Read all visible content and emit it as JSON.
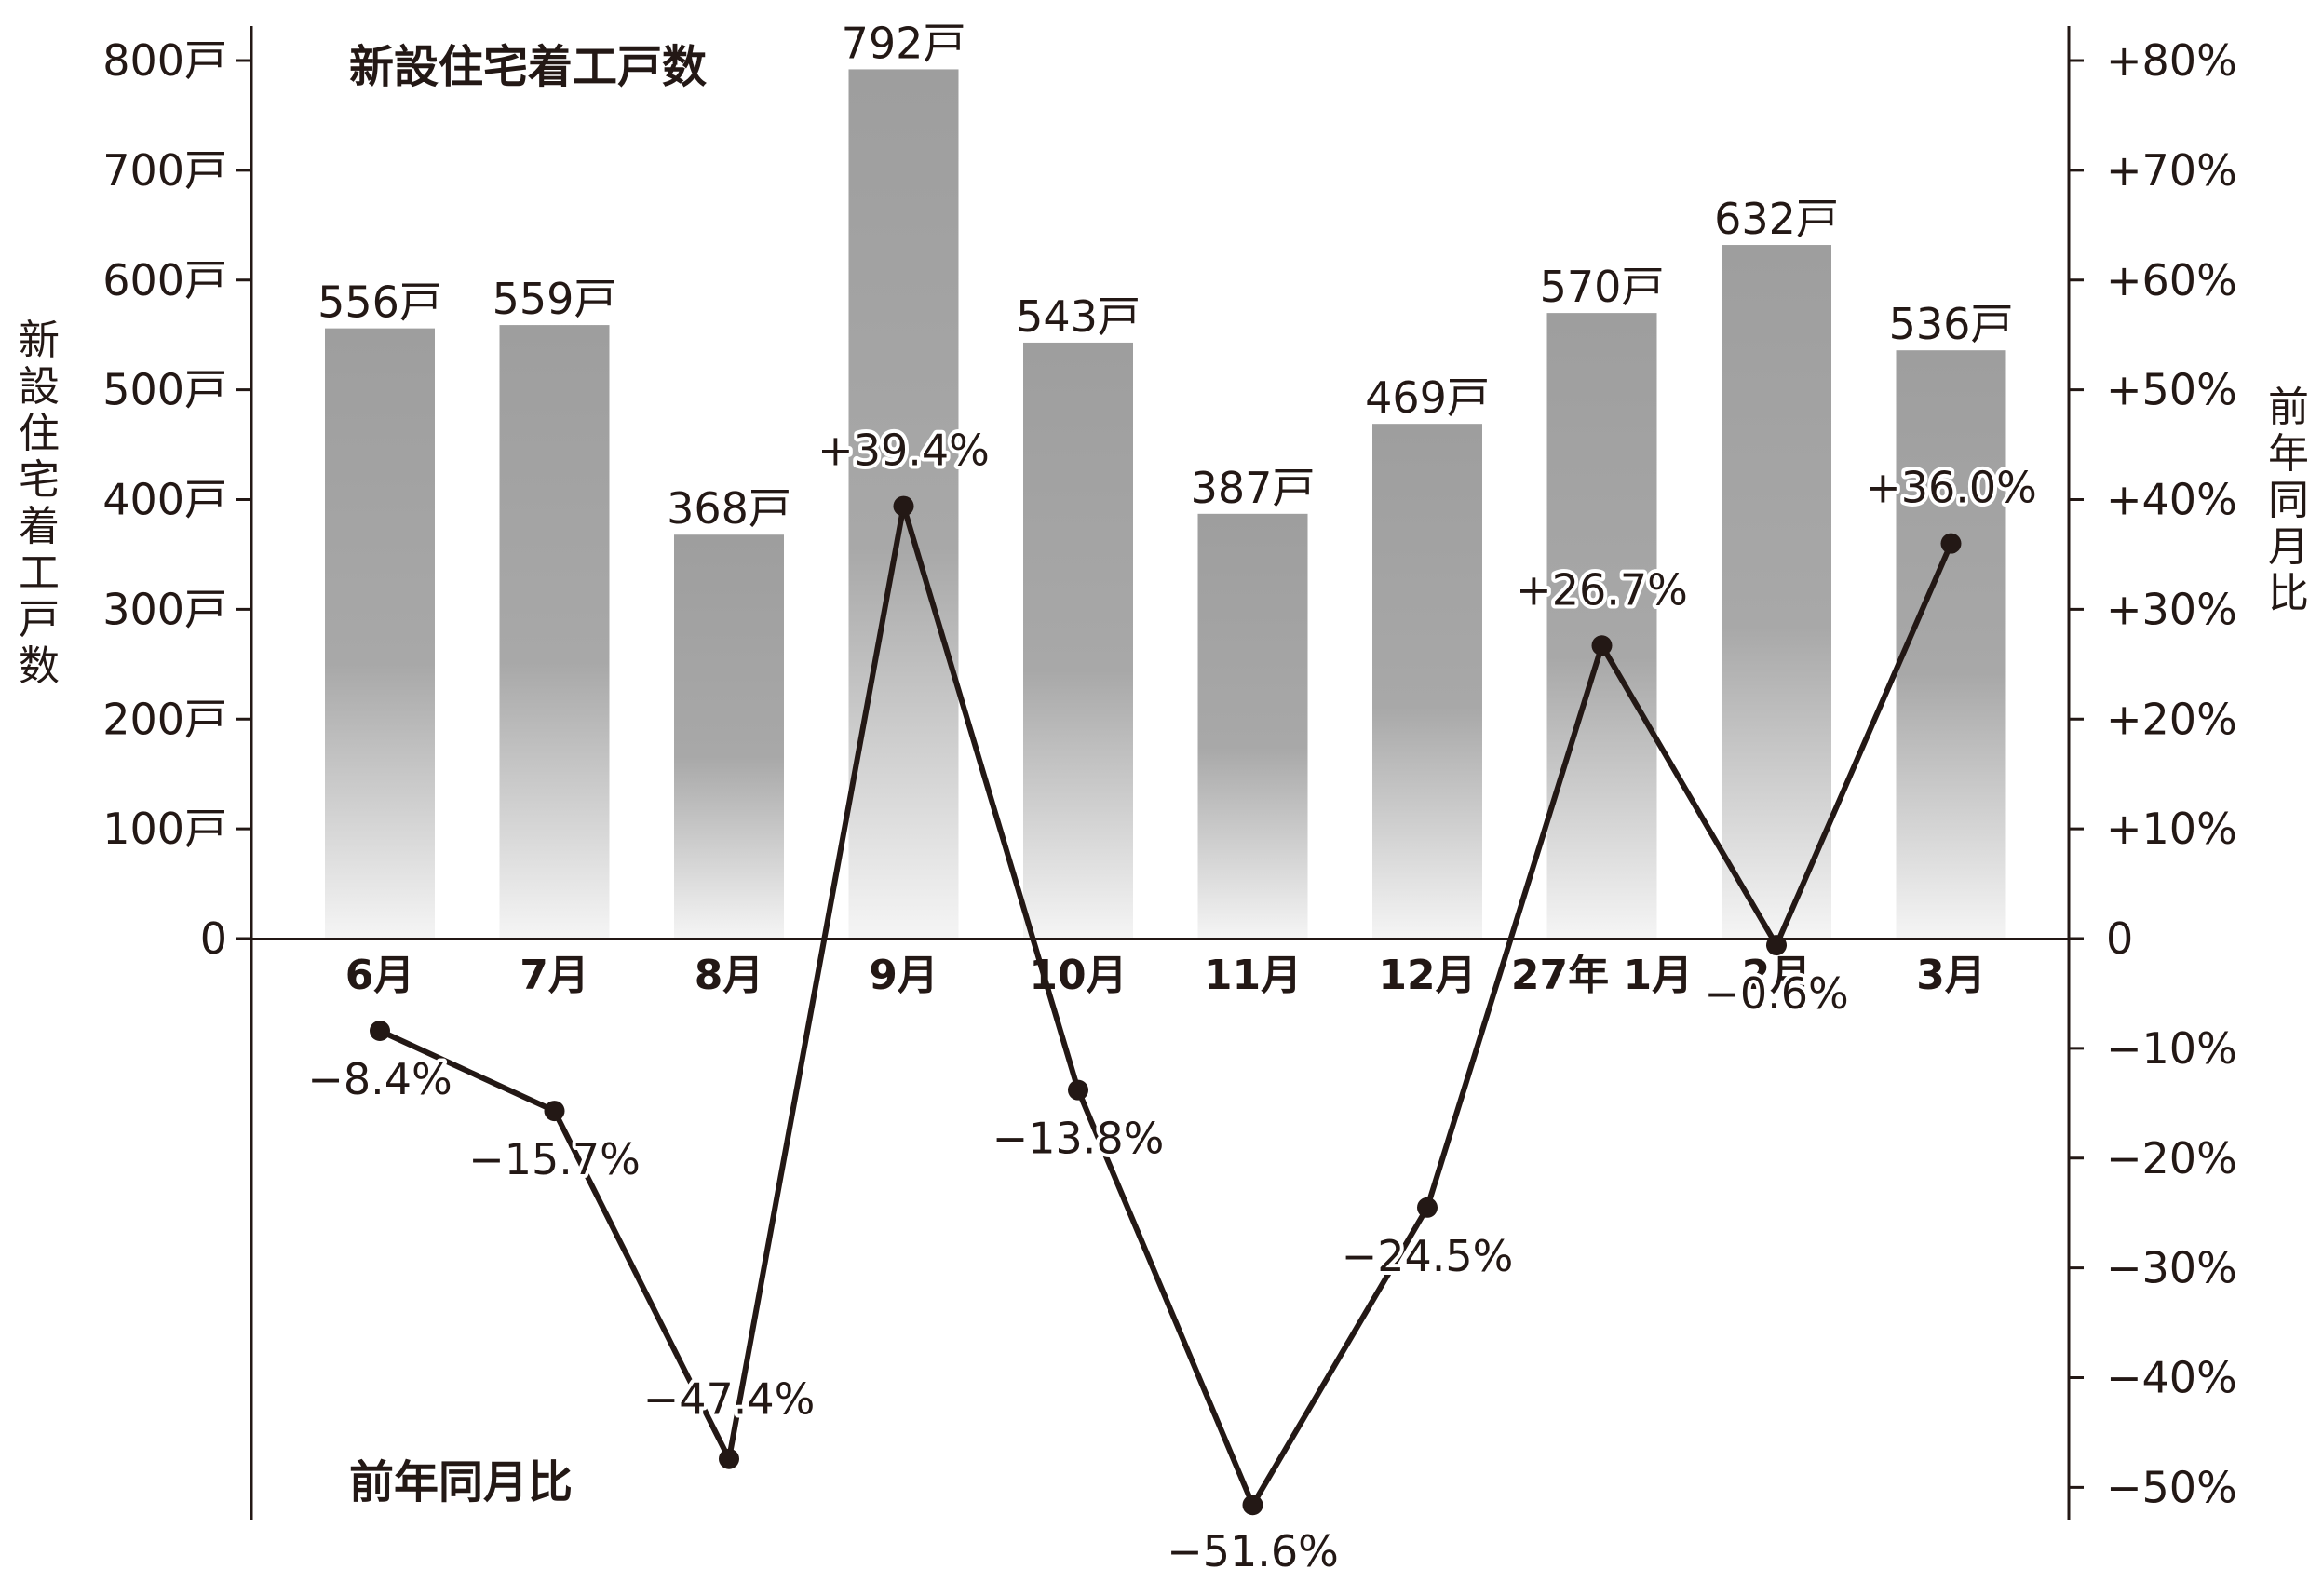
{
  "chart_data": {
    "type": "bar",
    "title": "新設住宅着工戸数",
    "secondary_title": "前年同月比",
    "ylabel": "新設住宅着工戸数",
    "ylabel_right": "前年同月比",
    "ylim": [
      0,
      800
    ],
    "ylim_right": [
      -50,
      80
    ],
    "grid": false,
    "categories": [
      "6月",
      "7月",
      "8月",
      "9月",
      "10月",
      "11月",
      "12月",
      "27年 1月",
      "2月",
      "3月"
    ],
    "y_ticks": [
      "0",
      "100戸",
      "200戸",
      "300戸",
      "400戸",
      "500戸",
      "600戸",
      "700戸",
      "800戸"
    ],
    "y_ticks_right": [
      "+80%",
      "+70%",
      "+60%",
      "+50%",
      "+40%",
      "+30%",
      "+20%",
      "+10%",
      "0",
      "−10%",
      "−20%",
      "−30%",
      "−40%",
      "−50%"
    ],
    "series": [
      {
        "name": "新設住宅着工戸数",
        "type": "bar",
        "axis": "left",
        "values": [
          556,
          559,
          368,
          792,
          543,
          387,
          469,
          570,
          632,
          536
        ],
        "labels": [
          "556戸",
          "559戸",
          "368戸",
          "792戸",
          "543戸",
          "387戸",
          "469戸",
          "570戸",
          "632戸",
          "536戸"
        ]
      },
      {
        "name": "前年同月比",
        "type": "line",
        "axis": "right",
        "values": [
          -8.4,
          -15.7,
          -47.4,
          39.4,
          -13.8,
          -51.6,
          -24.5,
          26.7,
          -0.6,
          36.0
        ],
        "labels": [
          "−8.4%",
          "−15.7%",
          "−47.4%",
          "+39.4%",
          "−13.8%",
          "−51.6%",
          "−24.5%",
          "+26.7%",
          "−0.6%",
          "+36.0%"
        ]
      }
    ],
    "colors": {
      "bar_top": "#9e9e9e",
      "bar_bottom": "#f5f5f5",
      "line": "#231815",
      "axis": "#231815"
    }
  }
}
